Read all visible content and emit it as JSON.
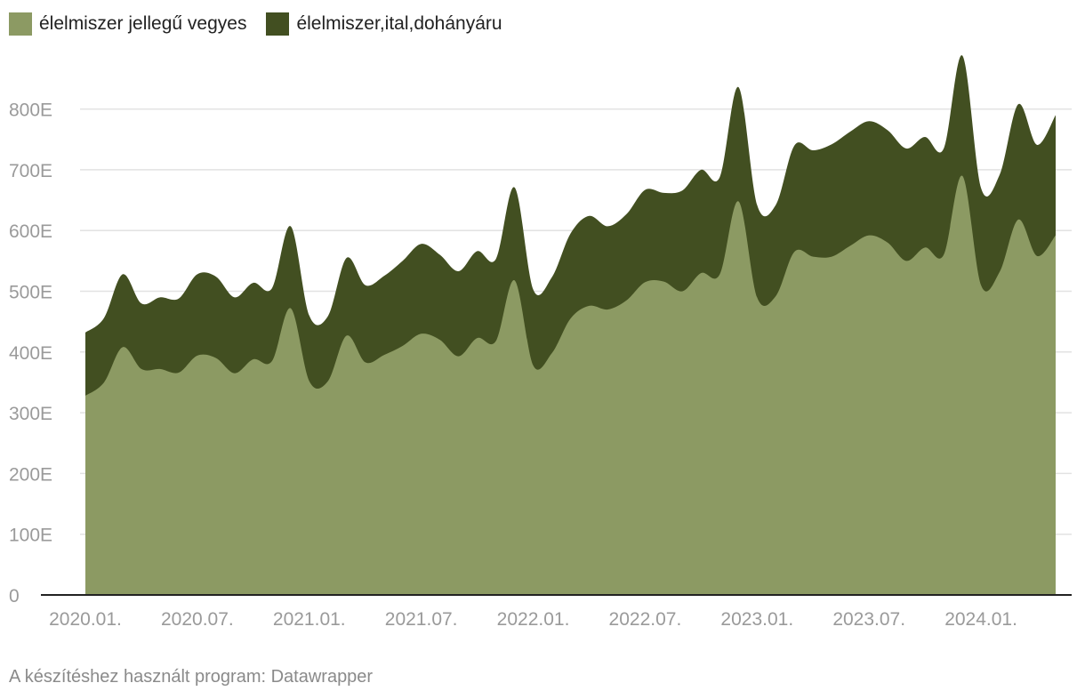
{
  "legend": [
    {
      "label": "élelmiszer jellegű vegyes",
      "color": "#8c9a63"
    },
    {
      "label": "élelmiszer,ital,dohányáru",
      "color": "#424f21"
    }
  ],
  "footer": {
    "credit": "A készítéshez használt program: Datawrapper"
  },
  "chart_data": {
    "type": "area",
    "stacked": true,
    "grid": true,
    "legend_position": "top-left",
    "ylim": [
      0,
      900000
    ],
    "yticks": [
      {
        "value": 0,
        "label": "0"
      },
      {
        "value": 100000,
        "label": "100E"
      },
      {
        "value": 200000,
        "label": "200E"
      },
      {
        "value": 300000,
        "label": "300E"
      },
      {
        "value": 400000,
        "label": "400E"
      },
      {
        "value": 500000,
        "label": "500E"
      },
      {
        "value": 600000,
        "label": "600E"
      },
      {
        "value": 700000,
        "label": "700E"
      },
      {
        "value": 800000,
        "label": "800E"
      }
    ],
    "xticks": [
      "2020.01.",
      "2020.07.",
      "2021.01.",
      "2021.07.",
      "2022.01.",
      "2022.07.",
      "2023.01.",
      "2023.07.",
      "2024.01."
    ],
    "x": [
      "2020.01.",
      "2020.02.",
      "2020.03.",
      "2020.04.",
      "2020.05.",
      "2020.06.",
      "2020.07.",
      "2020.08.",
      "2020.09.",
      "2020.10.",
      "2020.11.",
      "2020.12.",
      "2021.01.",
      "2021.02.",
      "2021.03.",
      "2021.04.",
      "2021.05.",
      "2021.06.",
      "2021.07.",
      "2021.08.",
      "2021.09.",
      "2021.10.",
      "2021.11.",
      "2021.12.",
      "2022.01.",
      "2022.02.",
      "2022.03.",
      "2022.04.",
      "2022.05.",
      "2022.06.",
      "2022.07.",
      "2022.08.",
      "2022.09.",
      "2022.10.",
      "2022.11.",
      "2022.12.",
      "2023.01.",
      "2023.02.",
      "2023.03.",
      "2023.04.",
      "2023.05.",
      "2023.06.",
      "2023.07.",
      "2023.08.",
      "2023.09.",
      "2023.10.",
      "2023.11.",
      "2023.12.",
      "2024.01.",
      "2024.02.",
      "2024.03.",
      "2024.04.",
      "2024.05."
    ],
    "series": [
      {
        "name": "élelmiszer jellegű vegyes",
        "color": "#8c9a63",
        "values": [
          328000,
          350000,
          408000,
          372000,
          372000,
          366000,
          394000,
          390000,
          365000,
          388000,
          385000,
          472000,
          352000,
          352000,
          427000,
          383000,
          395000,
          410000,
          430000,
          420000,
          393000,
          423000,
          418000,
          518000,
          378000,
          398000,
          455000,
          476000,
          470000,
          485000,
          515000,
          516000,
          500000,
          530000,
          528000,
          648000,
          490000,
          492000,
          565000,
          557000,
          557000,
          575000,
          592000,
          580000,
          550000,
          572000,
          560000,
          690000,
          510000,
          532000,
          618000,
          558000,
          592000
        ]
      },
      {
        "name": "élelmiszer,ital,dohányáru",
        "color": "#424f21",
        "values": [
          104000,
          106000,
          120000,
          108000,
          118000,
          122000,
          134000,
          134000,
          125000,
          126000,
          120000,
          135000,
          108000,
          107000,
          128000,
          127000,
          130000,
          140000,
          148000,
          140000,
          140000,
          143000,
          135000,
          153000,
          125000,
          125000,
          140000,
          148000,
          137000,
          142000,
          152000,
          146000,
          166000,
          170000,
          160000,
          188000,
          152000,
          150000,
          175000,
          175000,
          185000,
          188000,
          188000,
          185000,
          185000,
          182000,
          175000,
          198000,
          160000,
          160000,
          190000,
          183000,
          198000
        ]
      }
    ]
  }
}
